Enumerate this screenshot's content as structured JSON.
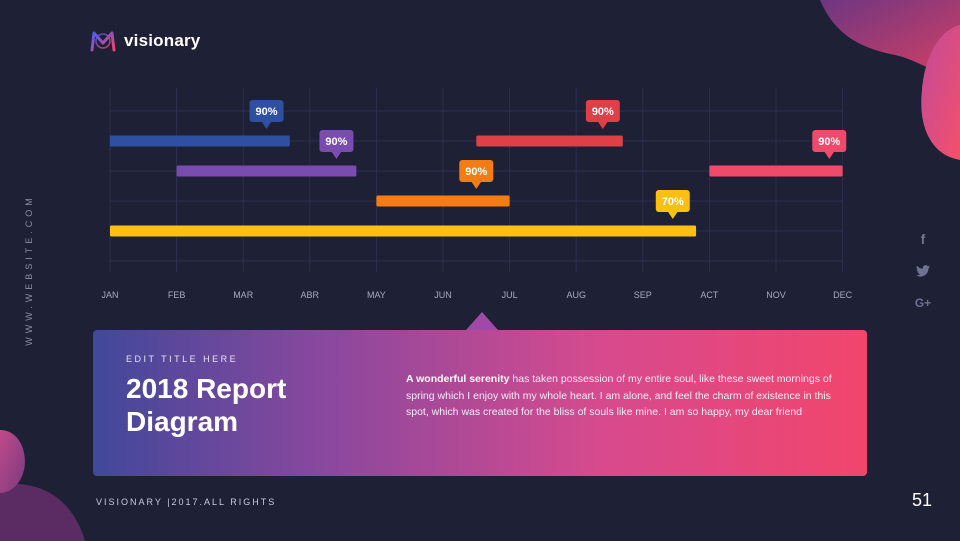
{
  "brand": {
    "name": "visionary"
  },
  "sidebar": {
    "vertical_text": "WWW.WEBSITE.COM"
  },
  "social": {
    "icons": [
      "facebook-icon",
      "twitter-icon",
      "google-plus-icon"
    ],
    "labels": [
      "f",
      "🐦",
      "G+"
    ]
  },
  "chart_data": {
    "type": "gantt",
    "categories": [
      "JAN",
      "FEB",
      "MAR",
      "ABR",
      "MAY",
      "JUN",
      "JUL",
      "AUG",
      "SEP",
      "ACT",
      "NOV",
      "DEC"
    ],
    "series": [
      {
        "start": 0,
        "end": 2.7,
        "percent": "90%",
        "color": "#2f4fa3",
        "label_at": 2.35,
        "row": 0
      },
      {
        "start": 5.5,
        "end": 7.7,
        "percent": "90%",
        "color": "#df3f46",
        "label_at": 7.4,
        "row": 0
      },
      {
        "start": 1,
        "end": 3.7,
        "percent": "90%",
        "color": "#7a4cb0",
        "label_at": 3.4,
        "row": 1
      },
      {
        "start": 9,
        "end": 11,
        "percent": "90%",
        "color": "#f04a6a",
        "label_at": 10.8,
        "row": 1
      },
      {
        "start": 4,
        "end": 6,
        "percent": "90%",
        "color": "#f57c14",
        "label_at": 5.5,
        "row": 2
      },
      {
        "start": 0,
        "end": 8.8,
        "percent": "70%",
        "color": "#fcbf12",
        "label_at": 8.45,
        "row": 3
      }
    ],
    "grid": true
  },
  "info": {
    "eyebrow": "EDIT TITLE HERE",
    "title": "2018 Report Diagram",
    "body_bold": "A wonderful serenity",
    "body_rest": " has taken possession of my entire soul, like these sweet mornings of spring which I enjoy with my whole heart. I am alone, and feel the charm of existence in this spot, which was created for the bliss of souls like mine. I am so happy, my dear friend"
  },
  "footer": {
    "text": "VISIONARY |2017.ALL RIGHTS"
  },
  "page_number": "51",
  "colors": {
    "background": "#1e2035",
    "accent_pink": "#f2456c",
    "accent_purple": "#41489a"
  }
}
